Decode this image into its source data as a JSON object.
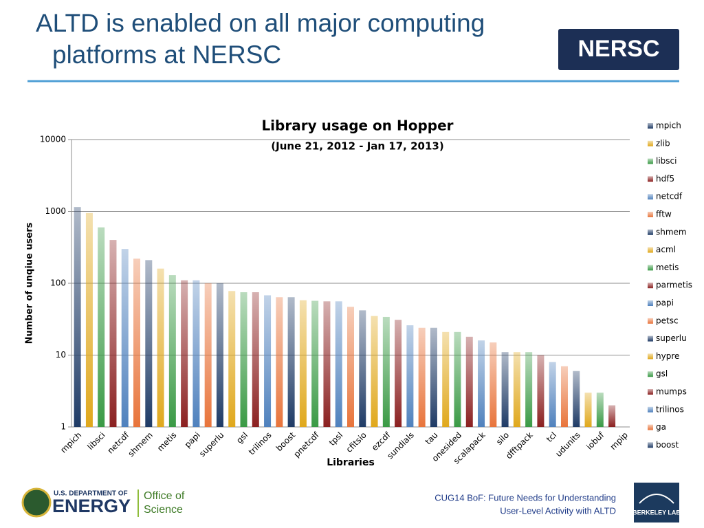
{
  "slide": {
    "title": [
      "ALTD is enabled on all major computing",
      "platforms at NERSC"
    ],
    "logo": "NERSC",
    "footer": [
      "CUG14 BoF: Future Needs for Understanding",
      "User-Level Activity with ALTD"
    ],
    "doe": [
      "U.S. DEPARTMENT OF",
      "ENERGY",
      "Office of",
      "Science"
    ],
    "lab": "BERKELEY LAB"
  },
  "chart_data": {
    "type": "bar",
    "title": "Library usage on Hopper",
    "subtitle": "(June 21, 2012 - Jan 17, 2013)",
    "x_label": "Libraries",
    "y_label": "Number of unqiue users",
    "categories": [
      "mpich",
      null,
      "libsci",
      null,
      "netcdf",
      null,
      "shmem",
      null,
      "metis",
      null,
      "papi",
      null,
      "superlu",
      null,
      "gsl",
      null,
      "trilinos",
      null,
      "boost",
      null,
      "pnetcdf",
      null,
      "tpsl",
      null,
      "cfitsio",
      null,
      "ezcdf",
      null,
      "sundials",
      null,
      "tau",
      null,
      "onesided",
      null,
      "scalapack",
      null,
      "silo",
      null,
      "dfftpack",
      null,
      "tcl",
      null,
      "udunits",
      null,
      "iobuf",
      null,
      "mpip"
    ],
    "values": [
      1150,
      950,
      600,
      400,
      300,
      220,
      210,
      160,
      130,
      110,
      110,
      100,
      100,
      78,
      75,
      75,
      68,
      64,
      64,
      58,
      57,
      56,
      56,
      47,
      42,
      35,
      34,
      31,
      26,
      24,
      24,
      21,
      21,
      18,
      16,
      15,
      11,
      11,
      11,
      10,
      8,
      7,
      6,
      3,
      3,
      2,
      1
    ],
    "legend": [
      "mpich",
      "zlib",
      "libsci",
      "hdf5",
      "netcdf",
      "fftw",
      "shmem",
      "acml",
      "metis",
      "parmetis",
      "papi",
      "petsc",
      "superlu",
      "hypre",
      "gsl",
      "mumps",
      "trilinos",
      "ga",
      "boost"
    ],
    "palette": [
      "#1f3b66",
      "#e0a81c",
      "#3a9a45",
      "#8b2020",
      "#4f81bd",
      "#e8743b"
    ],
    "ylim": [
      1,
      10000
    ],
    "yticks": [
      1,
      10,
      100,
      1000,
      10000
    ],
    "log_scale": true,
    "grid": true
  }
}
